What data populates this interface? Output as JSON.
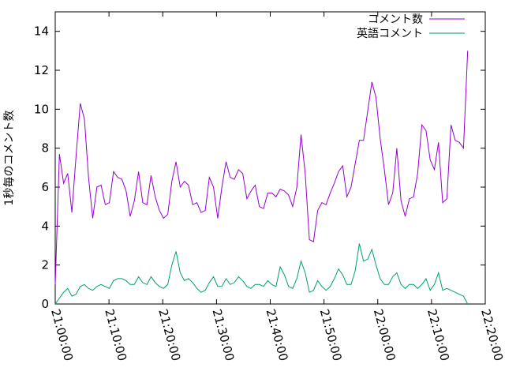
{
  "chart_data": {
    "type": "line",
    "ylabel": "1秒毎のコメント数",
    "ylim": [
      0,
      15
    ],
    "yticks": [
      0,
      2,
      4,
      6,
      8,
      10,
      12,
      14
    ],
    "xlim_seconds": [
      75600,
      80400
    ],
    "xticks": [
      "21:00:00",
      "21:10:00",
      "21:20:00",
      "21:30:00",
      "21:40:00",
      "21:50:00",
      "22:00:00",
      "22:10:00",
      "22:20:00"
    ],
    "x_start": "21:00:00",
    "x_step_seconds": 46.5,
    "legend_position": "top-right",
    "series": [
      {
        "name": "コメント数",
        "color": "#9400d3",
        "values": [
          1.0,
          7.7,
          6.2,
          6.7,
          4.7,
          7.6,
          10.3,
          9.5,
          6.5,
          4.4,
          6.0,
          6.1,
          5.1,
          5.2,
          6.8,
          6.5,
          6.4,
          5.8,
          4.5,
          5.3,
          6.8,
          5.2,
          5.1,
          6.6,
          5.5,
          4.8,
          4.4,
          4.6,
          6.3,
          7.3,
          6.0,
          6.3,
          6.1,
          5.1,
          5.2,
          4.7,
          4.8,
          6.5,
          6.0,
          4.4,
          6.0,
          7.3,
          6.5,
          6.4,
          6.9,
          6.7,
          5.4,
          5.8,
          6.1,
          5.0,
          4.9,
          5.7,
          5.7,
          5.5,
          5.9,
          5.8,
          5.6,
          5.0,
          6.0,
          8.7,
          6.7,
          3.3,
          3.2,
          4.8,
          5.2,
          5.1,
          5.7,
          6.2,
          6.8,
          7.1,
          5.5,
          6.0,
          7.2,
          8.4,
          8.4,
          9.9,
          11.4,
          10.6,
          8.5,
          6.9,
          5.1,
          5.7,
          8.0,
          5.3,
          4.5,
          5.4,
          5.5,
          6.7,
          9.2,
          8.9,
          7.4,
          6.9,
          8.3,
          5.2,
          5.4,
          9.2,
          8.4,
          8.3,
          8.0,
          13.0
        ]
      },
      {
        "name": "英語コメント",
        "color": "#009e73",
        "values": [
          0.0,
          0.3,
          0.6,
          0.8,
          0.4,
          0.5,
          0.9,
          1.0,
          0.8,
          0.7,
          0.9,
          1.0,
          0.9,
          0.8,
          1.2,
          1.3,
          1.3,
          1.2,
          1.0,
          1.0,
          1.4,
          1.1,
          1.0,
          1.4,
          1.1,
          0.9,
          0.8,
          1.0,
          2.0,
          2.7,
          1.6,
          1.2,
          1.3,
          1.1,
          0.8,
          0.6,
          0.7,
          1.1,
          1.4,
          0.9,
          0.9,
          1.3,
          1.0,
          1.1,
          1.4,
          1.2,
          0.9,
          0.8,
          1.0,
          1.0,
          0.9,
          1.2,
          1.0,
          0.9,
          1.9,
          1.5,
          0.9,
          0.8,
          1.3,
          2.2,
          1.6,
          0.6,
          0.7,
          1.2,
          0.9,
          0.7,
          0.9,
          1.3,
          1.8,
          1.5,
          1.0,
          1.0,
          1.7,
          3.1,
          2.2,
          2.3,
          2.8,
          2.0,
          1.3,
          1.0,
          1.0,
          1.4,
          1.6,
          1.0,
          0.8,
          1.0,
          1.0,
          0.8,
          1.0,
          1.3,
          0.7,
          1.0,
          1.6,
          0.7,
          0.8,
          0.7,
          0.6,
          0.5,
          0.4,
          0.0
        ]
      }
    ]
  }
}
